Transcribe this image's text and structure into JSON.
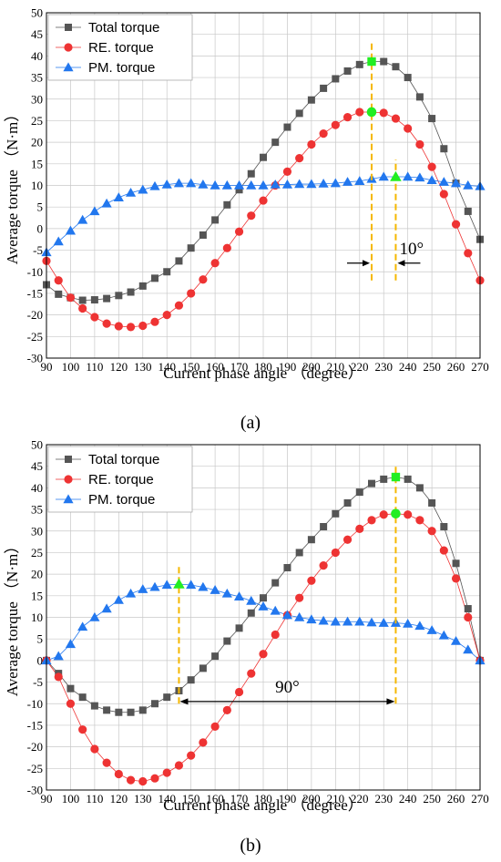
{
  "chart_data": [
    {
      "type": "line",
      "panel_label": "(a)",
      "xlabel": "Current phase angle （degree）",
      "ylabel": "Average torque （N·m）",
      "xlim": [
        90,
        270
      ],
      "ylim": [
        -30,
        50
      ],
      "xticks": [
        "90",
        "100",
        "110",
        "120",
        "130",
        "140",
        "150",
        "160",
        "170",
        "180",
        "190",
        "200",
        "210",
        "220",
        "230",
        "240",
        "250",
        "260",
        "270"
      ],
      "yticks": [
        "-30",
        "-25",
        "-20",
        "-15",
        "-10",
        "-5",
        "0",
        "5",
        "10",
        "15",
        "20",
        "25",
        "30",
        "35",
        "40",
        "45",
        "50"
      ],
      "grid": true,
      "legend_position": "top-left",
      "series": [
        {
          "name": "Total torque",
          "marker": "square",
          "color": "#555555",
          "x": [
            90,
            95,
            100,
            105,
            110,
            115,
            120,
            125,
            130,
            135,
            140,
            145,
            150,
            155,
            160,
            165,
            170,
            175,
            180,
            185,
            190,
            195,
            200,
            205,
            210,
            215,
            220,
            225,
            230,
            235,
            240,
            245,
            250,
            255,
            260,
            265,
            270
          ],
          "y": [
            -13,
            -15.2,
            -16,
            -16.6,
            -16.5,
            -16.2,
            -15.5,
            -14.7,
            -13.3,
            -11.5,
            -10,
            -7.5,
            -4.5,
            -1.5,
            2,
            5.5,
            9,
            12.7,
            16.5,
            20,
            23.5,
            26.7,
            29.8,
            32.5,
            34.7,
            36.5,
            38,
            38.7,
            38.7,
            37.5,
            35,
            30.5,
            25.5,
            18.5,
            10.5,
            4,
            -2.5
          ]
        },
        {
          "name": "RE. torque",
          "marker": "circle",
          "color": "#ee3333",
          "x": [
            90,
            95,
            100,
            105,
            110,
            115,
            120,
            125,
            130,
            135,
            140,
            145,
            150,
            155,
            160,
            165,
            170,
            175,
            180,
            185,
            190,
            195,
            200,
            205,
            210,
            215,
            220,
            225,
            230,
            235,
            240,
            245,
            250,
            255,
            260,
            265,
            270
          ],
          "y": [
            -7.5,
            -12,
            -16,
            -18.5,
            -20.5,
            -22,
            -22.6,
            -22.8,
            -22.5,
            -21.6,
            -20,
            -17.8,
            -15,
            -11.8,
            -8,
            -4.5,
            -0.7,
            3,
            6.5,
            10,
            13.2,
            16.3,
            19.5,
            22,
            24,
            25.8,
            27,
            27,
            26.8,
            25.5,
            23.2,
            19.5,
            14.3,
            8,
            1,
            -5.7,
            -12
          ]
        },
        {
          "name": "PM. torque",
          "marker": "triangle",
          "color": "#2277ee",
          "x": [
            90,
            95,
            100,
            105,
            110,
            115,
            120,
            125,
            130,
            135,
            140,
            145,
            150,
            155,
            160,
            165,
            170,
            175,
            180,
            185,
            190,
            195,
            200,
            205,
            210,
            215,
            220,
            225,
            230,
            235,
            240,
            245,
            250,
            255,
            260,
            265,
            270
          ],
          "y": [
            -5.5,
            -3,
            -0.5,
            2,
            4,
            5.8,
            7.2,
            8.3,
            9,
            9.8,
            10.2,
            10.5,
            10.5,
            10.2,
            10,
            10,
            10,
            10,
            10,
            10.2,
            10.2,
            10.3,
            10.3,
            10.4,
            10.5,
            10.8,
            11,
            11.5,
            12,
            12,
            12,
            11.8,
            11.2,
            10.8,
            10.5,
            10,
            9.8
          ]
        }
      ],
      "highlight_points": [
        {
          "series": "Total torque",
          "x": 225,
          "y": 38.7,
          "marker": "square"
        },
        {
          "series": "RE. torque",
          "x": 225,
          "y": 27,
          "marker": "circle"
        },
        {
          "series": "PM. torque",
          "x": 235,
          "y": 12,
          "marker": "triangle"
        }
      ],
      "markers": [
        {
          "x": 225,
          "y_from": -12,
          "y_to": 43
        },
        {
          "x": 235,
          "y_from": -12,
          "y_to": 16
        }
      ],
      "angle_annotation": {
        "text": "10°",
        "x1": 225,
        "x2": 235,
        "y": -8,
        "arrows": "outside"
      },
      "colors": {
        "marker_line": "#f5b800",
        "highlight": "#22ee22"
      }
    },
    {
      "type": "line",
      "panel_label": "(b)",
      "xlabel": "Current phase angle （degree）",
      "ylabel": "Average torque （N·m）",
      "xlim": [
        90,
        270
      ],
      "ylim": [
        -30,
        50
      ],
      "xticks": [
        "90",
        "100",
        "110",
        "120",
        "130",
        "140",
        "150",
        "160",
        "170",
        "180",
        "190",
        "200",
        "210",
        "220",
        "230",
        "240",
        "250",
        "260",
        "270"
      ],
      "yticks": [
        "-30",
        "-25",
        "-20",
        "-15",
        "-10",
        "-5",
        "0",
        "5",
        "10",
        "15",
        "20",
        "25",
        "30",
        "35",
        "40",
        "45",
        "50"
      ],
      "grid": true,
      "legend_position": "top-left",
      "series": [
        {
          "name": "Total torque",
          "marker": "square",
          "color": "#555555",
          "x": [
            90,
            95,
            100,
            105,
            110,
            115,
            120,
            125,
            130,
            135,
            140,
            145,
            150,
            155,
            160,
            165,
            170,
            175,
            180,
            185,
            190,
            195,
            200,
            205,
            210,
            215,
            220,
            225,
            230,
            235,
            240,
            245,
            250,
            255,
            260,
            265,
            270
          ],
          "y": [
            0,
            -3,
            -6.5,
            -8.5,
            -10.5,
            -11.5,
            -12,
            -12,
            -11.5,
            -10,
            -8.5,
            -7,
            -4.5,
            -1.8,
            1,
            4.5,
            7.5,
            11,
            14.5,
            18,
            21.5,
            25,
            28,
            31,
            34,
            36.5,
            39,
            41,
            42,
            42.5,
            42,
            40,
            36.5,
            31,
            22.5,
            12,
            0
          ]
        },
        {
          "name": "RE. torque",
          "marker": "circle",
          "color": "#ee3333",
          "x": [
            90,
            95,
            100,
            105,
            110,
            115,
            120,
            125,
            130,
            135,
            140,
            145,
            150,
            155,
            160,
            165,
            170,
            175,
            180,
            185,
            190,
            195,
            200,
            205,
            210,
            215,
            220,
            225,
            230,
            235,
            240,
            245,
            250,
            255,
            260,
            265,
            270
          ],
          "y": [
            0,
            -3.8,
            -10,
            -16,
            -20.5,
            -23.7,
            -26.3,
            -27.7,
            -28,
            -27.3,
            -26,
            -24.3,
            -22,
            -19,
            -15.3,
            -11.5,
            -7.3,
            -3,
            1.5,
            6,
            10.5,
            14.5,
            18.5,
            22,
            25,
            28,
            30.5,
            32.5,
            33.8,
            34,
            33.8,
            32.5,
            30,
            25.5,
            19,
            10,
            0
          ]
        },
        {
          "name": "PM. torque",
          "marker": "triangle",
          "color": "#2277ee",
          "x": [
            90,
            95,
            100,
            105,
            110,
            115,
            120,
            125,
            130,
            135,
            140,
            145,
            150,
            155,
            160,
            165,
            170,
            175,
            180,
            185,
            190,
            195,
            200,
            205,
            210,
            215,
            220,
            225,
            230,
            235,
            240,
            245,
            250,
            255,
            260,
            265,
            270
          ],
          "y": [
            0,
            1,
            3.8,
            7.8,
            10,
            12,
            14,
            15.5,
            16.5,
            17,
            17.5,
            17.7,
            17.5,
            17,
            16.3,
            15.5,
            14.8,
            13.8,
            12.5,
            11.5,
            10.5,
            10,
            9.5,
            9.2,
            9,
            9,
            9,
            8.8,
            8.7,
            8.7,
            8.5,
            8,
            7,
            5.8,
            4.5,
            2.5,
            0
          ]
        }
      ],
      "highlight_points": [
        {
          "series": "PM. torque",
          "x": 145,
          "y": 17.7,
          "marker": "triangle"
        },
        {
          "series": "Total torque",
          "x": 235,
          "y": 42.5,
          "marker": "square"
        },
        {
          "series": "RE. torque",
          "x": 235,
          "y": 34,
          "marker": "circle"
        }
      ],
      "markers": [
        {
          "x": 145,
          "y_from": -10,
          "y_to": 22
        },
        {
          "x": 235,
          "y_from": -10,
          "y_to": 45
        }
      ],
      "angle_annotation": {
        "text": "90°",
        "x1": 145,
        "x2": 235,
        "y": -9.5,
        "arrows": "inside"
      },
      "colors": {
        "marker_line": "#f5b800",
        "highlight": "#22ee22"
      }
    }
  ]
}
